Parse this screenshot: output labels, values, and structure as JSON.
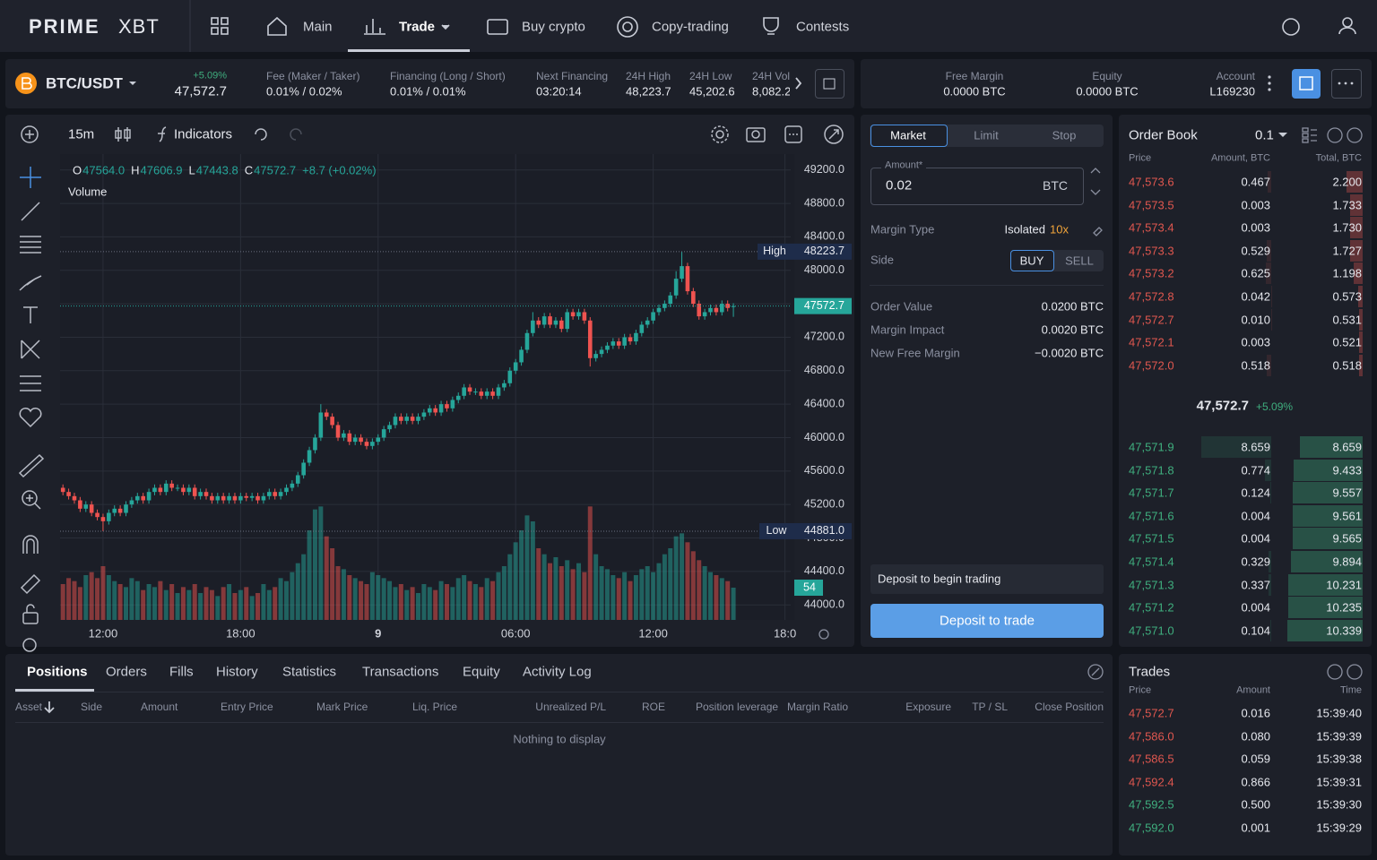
{
  "nav": {
    "logo": "PRIME",
    "logo_suffix": "XBT",
    "items": [
      "Main",
      "Trade",
      "Buy crypto",
      "Copy-trading",
      "Contests"
    ]
  },
  "ticker": {
    "pair": "BTC/USDT",
    "change": "+5.09%",
    "price": "47,572.7",
    "stats": [
      {
        "label": "Fee (Maker / Taker)",
        "value": "0.01% / 0.02%"
      },
      {
        "label": "Financing (Long / Short)",
        "value": "0.01% / 0.01%"
      },
      {
        "label": "Next Financing",
        "value": "03:20:14"
      },
      {
        "label": "24H High",
        "value": "48,223.7"
      },
      {
        "label": "24H Low",
        "value": "45,202.6"
      },
      {
        "label": "24H Vol",
        "value": "8,082.2"
      }
    ]
  },
  "account": [
    {
      "label": "Free Margin",
      "value": "0.0000 BTC"
    },
    {
      "label": "Equity",
      "value": "0.0000 BTC"
    },
    {
      "label": "Account",
      "value": "L169230"
    }
  ],
  "toolbar": {
    "interval": "15m",
    "indicators": "Indicators"
  },
  "chart_data": {
    "type": "candlestick",
    "legend": {
      "labels": [
        "O",
        "H",
        "L",
        "C"
      ],
      "values": [
        "47564.0",
        "47606.9",
        "47443.8",
        "47572.7"
      ],
      "change": "+8.7 (+0.02%)"
    },
    "volume_title": "Volume",
    "up_color": "#26a69a",
    "down_color": "#ef5350",
    "grid": true,
    "xlim": [
      -0.5,
      127
    ],
    "xticks": [
      {
        "value": 7,
        "label": "12:00"
      },
      {
        "value": 31,
        "label": "18:00"
      },
      {
        "value": 55,
        "label": "9"
      },
      {
        "value": 79,
        "label": "06:00"
      },
      {
        "value": 103,
        "label": "12:00"
      },
      {
        "value": 126,
        "label": "18:0"
      }
    ],
    "ylim": [
      43820,
      49390
    ],
    "yticks": [
      {
        "value": 49200,
        "label": "49200.0"
      },
      {
        "value": 48800,
        "label": "48800.0"
      },
      {
        "value": 48400,
        "label": "48400.0"
      },
      {
        "value": 48000,
        "label": "48000.0"
      },
      {
        "value": 47600,
        "label": "47600.0"
      },
      {
        "value": 47200,
        "label": "47200.0"
      },
      {
        "value": 46800,
        "label": "46800.0"
      },
      {
        "value": 46400,
        "label": "46400.0"
      },
      {
        "value": 46000,
        "label": "46000.0"
      },
      {
        "value": 45600,
        "label": "45600.0"
      },
      {
        "value": 45200,
        "label": "45200.0"
      },
      {
        "value": 44800,
        "label": "44800.0"
      },
      {
        "value": 44400,
        "label": "44400.0"
      },
      {
        "value": 44000,
        "label": "44000.0"
      }
    ],
    "vlim": [
      0,
      300
    ],
    "high_label": "High",
    "low_label": "Low",
    "low_value_label": "44881.0",
    "open": [
      45400,
      45350,
      45300,
      45250,
      45150,
      45200,
      45100,
      45050,
      45000,
      45100,
      45150,
      45100,
      45200,
      45250,
      45300,
      45250,
      45350,
      45400,
      45350,
      45450,
      45400,
      45400,
      45350,
      45400,
      45300,
      45350,
      45300,
      45250,
      45300,
      45250,
      45300,
      45250,
      45300,
      45280,
      45300,
      45250,
      45300,
      45350,
      45300,
      45350,
      45400,
      45450,
      45550,
      45700,
      45850,
      46000,
      46300,
      46250,
      46150,
      46000,
      46050,
      45950,
      46000,
      45950,
      45900,
      45950,
      46000,
      46100,
      46150,
      46250,
      46200,
      46250,
      46200,
      46250,
      46300,
      46350,
      46300,
      46400,
      46350,
      46450,
      46500,
      46600,
      46550,
      46550,
      46500,
      46550,
      46500,
      46600,
      46650,
      46800,
      46900,
      47050,
      47250,
      47400,
      47350,
      47450,
      47350,
      47400,
      47300,
      47500,
      47450,
      47500,
      47400,
      46950,
      47000,
      47050,
      47100,
      47150,
      47100,
      47200,
      47150,
      47250,
      47350,
      47400,
      47500,
      47550,
      47600,
      47700,
      47900,
      48050,
      47750,
      47600,
      47450,
      47500,
      47550,
      47500,
      47600,
      47564.0
    ],
    "high": [
      45440,
      45390,
      45340,
      45290,
      45240,
      45240,
      45140,
      45090,
      45140,
      45190,
      45190,
      45240,
      45290,
      45340,
      45340,
      45390,
      45440,
      45440,
      45490,
      45490,
      45440,
      45440,
      45440,
      45440,
      45390,
      45390,
      45340,
      45340,
      45340,
      45340,
      45340,
      45340,
      45340,
      45340,
      45340,
      45340,
      45390,
      45390,
      45390,
      45440,
      45490,
      45590,
      45740,
      45890,
      46040,
      46400,
      46340,
      46290,
      46190,
      46090,
      46090,
      46040,
      46040,
      45990,
      45990,
      46040,
      46140,
      46190,
      46290,
      46290,
      46290,
      46290,
      46290,
      46340,
      46390,
      46390,
      46440,
      46440,
      46490,
      46540,
      46640,
      46640,
      46590,
      46590,
      46590,
      46590,
      46640,
      46690,
      46840,
      46940,
      47090,
      47290,
      47500,
      47440,
      47490,
      47490,
      47440,
      47440,
      47540,
      47540,
      47540,
      47540,
      47440,
      47040,
      47090,
      47140,
      47190,
      47190,
      47240,
      47240,
      47290,
      47390,
      47440,
      47540,
      47590,
      47640,
      47740,
      47990,
      48223.7,
      48090,
      47790,
      47640,
      47540,
      47590,
      47590,
      47640,
      47640,
      47606.9
    ],
    "low": [
      45310,
      45260,
      45210,
      45110,
      45110,
      45060,
      45010,
      44881.0,
      44960,
      45060,
      45060,
      45060,
      45160,
      45210,
      45210,
      45210,
      45310,
      45310,
      45310,
      45360,
      45360,
      45310,
      45310,
      45260,
      45260,
      45260,
      45210,
      45210,
      45210,
      45210,
      45210,
      45210,
      45240,
      45240,
      45210,
      45210,
      45260,
      45260,
      45260,
      45310,
      45360,
      45410,
      45510,
      45660,
      45810,
      45960,
      46210,
      46110,
      45960,
      45960,
      45910,
      45910,
      45910,
      45860,
      45860,
      45910,
      45960,
      46060,
      46110,
      46160,
      46160,
      46160,
      46160,
      46210,
      46260,
      46260,
      46260,
      46310,
      46310,
      46410,
      46460,
      46510,
      46510,
      46460,
      46460,
      46460,
      46460,
      46560,
      46610,
      46760,
      46860,
      47010,
      47210,
      47310,
      47310,
      47310,
      47310,
      47260,
      47260,
      47410,
      47410,
      47360,
      46850,
      46910,
      46960,
      47010,
      47060,
      47060,
      47060,
      47110,
      47110,
      47210,
      47310,
      47360,
      47460,
      47510,
      47560,
      47660,
      47860,
      47710,
      47560,
      47410,
      47410,
      47460,
      47460,
      47460,
      47510,
      47443.8
    ],
    "close": [
      45350,
      45300,
      45250,
      45150,
      45200,
      45100,
      45050,
      45000,
      45100,
      45150,
      45100,
      45200,
      45250,
      45300,
      45250,
      45350,
      45400,
      45350,
      45450,
      45400,
      45400,
      45350,
      45400,
      45300,
      45350,
      45300,
      45250,
      45300,
      45250,
      45300,
      45250,
      45300,
      45280,
      45300,
      45250,
      45300,
      45350,
      45300,
      45350,
      45400,
      45450,
      45550,
      45700,
      45850,
      46000,
      46300,
      46250,
      46150,
      46000,
      46050,
      45950,
      46000,
      45950,
      45900,
      45950,
      46000,
      46100,
      46150,
      46250,
      46200,
      46250,
      46200,
      46250,
      46300,
      46350,
      46300,
      46400,
      46350,
      46450,
      46500,
      46600,
      46550,
      46550,
      46500,
      46550,
      46500,
      46600,
      46650,
      46800,
      46900,
      47050,
      47250,
      47400,
      47350,
      47450,
      47350,
      47400,
      47300,
      47500,
      47450,
      47500,
      47400,
      46950,
      47000,
      47050,
      47100,
      47150,
      47100,
      47200,
      47150,
      47250,
      47350,
      47400,
      47500,
      47550,
      47600,
      47700,
      47900,
      48050,
      47750,
      47600,
      47450,
      47500,
      47550,
      47500,
      47600,
      47550,
      47572.7
    ],
    "volume": [
      60,
      70,
      65,
      55,
      75,
      80,
      70,
      90,
      75,
      65,
      60,
      55,
      70,
      65,
      50,
      60,
      55,
      65,
      50,
      60,
      45,
      55,
      50,
      60,
      45,
      55,
      50,
      40,
      55,
      60,
      45,
      50,
      55,
      40,
      45,
      60,
      50,
      55,
      70,
      65,
      80,
      95,
      110,
      150,
      185,
      190,
      140,
      120,
      90,
      85,
      75,
      70,
      65,
      60,
      80,
      75,
      70,
      65,
      55,
      60,
      50,
      55,
      45,
      60,
      55,
      50,
      65,
      60,
      55,
      70,
      75,
      65,
      60,
      55,
      70,
      65,
      80,
      90,
      110,
      130,
      150,
      175,
      165,
      120,
      110,
      95,
      105,
      90,
      100,
      85,
      95,
      80,
      190,
      110,
      90,
      85,
      75,
      70,
      80,
      65,
      75,
      85,
      90,
      80,
      95,
      110,
      120,
      140,
      145,
      130,
      115,
      100,
      90,
      80,
      75,
      70,
      65,
      54
    ]
  },
  "order_form": {
    "tabs": [
      "Market",
      "Limit",
      "Stop"
    ],
    "amount_label": "Amount*",
    "amount": "0.02",
    "unit": "BTC",
    "margin_type_label": "Margin Type",
    "margin_type": "Isolated",
    "leverage": "10x",
    "side_label": "Side",
    "sides": [
      "BUY",
      "SELL"
    ],
    "summary": [
      {
        "label": "Order Value",
        "value": "0.0200 BTC"
      },
      {
        "label": "Margin Impact",
        "value": "0.0020 BTC"
      },
      {
        "label": "New Free Margin",
        "value": "−0.0020 BTC"
      }
    ],
    "notice": "Deposit to begin trading",
    "button": "Deposit to trade"
  },
  "order_book": {
    "title": "Order Book",
    "step": "0.1",
    "columns": [
      "Price",
      "Amount, BTC",
      "Total, BTC"
    ],
    "asks": [
      [
        "47,573.6",
        "0.467",
        "2.200"
      ],
      [
        "47,573.5",
        "0.003",
        "1.733"
      ],
      [
        "47,573.4",
        "0.003",
        "1.730"
      ],
      [
        "47,573.3",
        "0.529",
        "1.727"
      ],
      [
        "47,573.2",
        "0.625",
        "1.198"
      ],
      [
        "47,572.8",
        "0.042",
        "0.573"
      ],
      [
        "47,572.7",
        "0.010",
        "0.531"
      ],
      [
        "47,572.1",
        "0.003",
        "0.521"
      ],
      [
        "47,572.0",
        "0.518",
        "0.518"
      ]
    ],
    "mid_price": "47,572.7",
    "mid_change": "+5.09%",
    "bids": [
      [
        "47,571.9",
        "8.659",
        "8.659"
      ],
      [
        "47,571.8",
        "0.774",
        "9.433"
      ],
      [
        "47,571.7",
        "0.124",
        "9.557"
      ],
      [
        "47,571.6",
        "0.004",
        "9.561"
      ],
      [
        "47,571.5",
        "0.004",
        "9.565"
      ],
      [
        "47,571.4",
        "0.329",
        "9.894"
      ],
      [
        "47,571.3",
        "0.337",
        "10.231"
      ],
      [
        "47,571.2",
        "0.004",
        "10.235"
      ],
      [
        "47,571.0",
        "0.104",
        "10.339"
      ]
    ],
    "ask_color": "#e0574f",
    "bid_color": "#3fae7e"
  },
  "positions": {
    "tabs": [
      "Positions",
      "Orders",
      "Fills",
      "History",
      "Statistics",
      "Transactions",
      "Equity",
      "Activity Log"
    ],
    "columns": [
      "Asset",
      "Side",
      "Amount",
      "Entry Price",
      "Mark Price",
      "Liq. Price",
      "Unrealized P/L",
      "ROE",
      "Position leverage",
      "Margin Ratio",
      "Exposure",
      "TP / SL",
      "Close Position"
    ],
    "empty": "Nothing to display"
  },
  "trades": {
    "title": "Trades",
    "columns": [
      "Price",
      "Amount",
      "Time"
    ],
    "rows": [
      [
        "47,572.7",
        "0.016",
        "15:39:40"
      ],
      [
        "47,586.0",
        "0.080",
        "15:39:39"
      ],
      [
        "47,586.5",
        "0.059",
        "15:39:38"
      ],
      [
        "47,592.4",
        "0.866",
        "15:39:31"
      ],
      [
        "47,592.5",
        "0.500",
        "15:39:30"
      ],
      [
        "47,592.0",
        "0.001",
        "15:39:29"
      ]
    ],
    "colors": [
      "#e0574f",
      "#e0574f",
      "#e0574f",
      "#e0574f",
      "#3fae7e",
      "#3fae7e"
    ]
  }
}
